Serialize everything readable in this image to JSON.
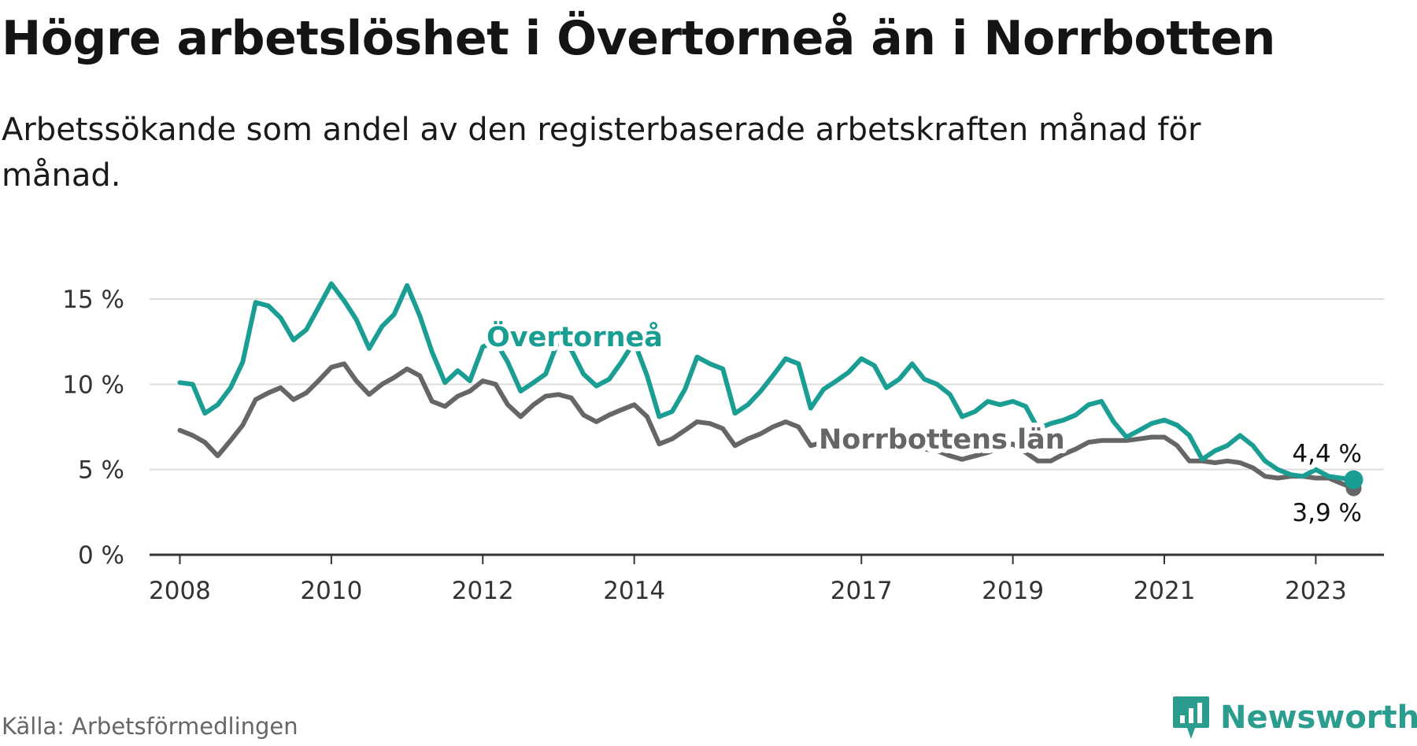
{
  "title": "Högre arbetslöshet i Övertorneå än i Norrbotten",
  "subtitle": "Arbetssökande som andel av den registerbaserade arbetskraften månad för månad.",
  "source": "Källa: Arbetsförmedlingen",
  "brand": "Newsworthy",
  "colors": {
    "overtornea": "#1a9e93",
    "norrbotten": "#666666",
    "grid": "#dddddd",
    "axis": "#333333",
    "brand": "#2a9d8f"
  },
  "chart_data": {
    "type": "line",
    "title": "Högre arbetslöshet i Övertorneå än i Norrbotten",
    "xlabel": "",
    "ylabel": "",
    "x_range": [
      2007.6,
      2023.9
    ],
    "ylim": [
      0,
      15
    ],
    "y_ticks": [
      {
        "value": 0,
        "label": "0 %"
      },
      {
        "value": 5,
        "label": "5 %"
      },
      {
        "value": 10,
        "label": "10 %"
      },
      {
        "value": 15,
        "label": "15 %"
      }
    ],
    "x_ticks": [
      {
        "value": 2008,
        "label": "2008"
      },
      {
        "value": 2010,
        "label": "2010"
      },
      {
        "value": 2012,
        "label": "2012"
      },
      {
        "value": 2014,
        "label": "2014"
      },
      {
        "value": 2017,
        "label": "2017"
      },
      {
        "value": 2019,
        "label": "2019"
      },
      {
        "value": 2021,
        "label": "2021"
      },
      {
        "value": 2023,
        "label": "2023"
      }
    ],
    "grid": true,
    "series": [
      {
        "name": "Övertorneå",
        "label": "Övertorneå",
        "end_label": "4,4 %",
        "x": [
          2008.0,
          2008.17,
          2008.33,
          2008.5,
          2008.67,
          2008.83,
          2009.0,
          2009.17,
          2009.33,
          2009.5,
          2009.67,
          2009.83,
          2010.0,
          2010.17,
          2010.33,
          2010.5,
          2010.67,
          2010.83,
          2011.0,
          2011.17,
          2011.33,
          2011.5,
          2011.67,
          2011.83,
          2012.0,
          2012.17,
          2012.33,
          2012.5,
          2012.67,
          2012.83,
          2013.0,
          2013.17,
          2013.33,
          2013.5,
          2013.67,
          2013.83,
          2014.0,
          2014.17,
          2014.33,
          2014.5,
          2014.67,
          2014.83,
          2015.0,
          2015.17,
          2015.33,
          2015.5,
          2015.67,
          2015.83,
          2016.0,
          2016.17,
          2016.33,
          2016.5,
          2016.67,
          2016.83,
          2017.0,
          2017.17,
          2017.33,
          2017.5,
          2017.67,
          2017.83,
          2018.0,
          2018.17,
          2018.33,
          2018.5,
          2018.67,
          2018.83,
          2019.0,
          2019.17,
          2019.33,
          2019.5,
          2019.67,
          2019.83,
          2020.0,
          2020.17,
          2020.33,
          2020.5,
          2020.67,
          2020.83,
          2021.0,
          2021.17,
          2021.33,
          2021.5,
          2021.67,
          2021.83,
          2022.0,
          2022.17,
          2022.33,
          2022.5,
          2022.67,
          2022.83,
          2023.0,
          2023.17,
          2023.33,
          2023.5
        ],
        "values": [
          10.1,
          10.0,
          8.3,
          8.8,
          9.8,
          11.3,
          14.8,
          14.6,
          13.9,
          12.6,
          13.2,
          14.5,
          15.9,
          14.9,
          13.8,
          12.1,
          13.4,
          14.1,
          15.8,
          14.0,
          11.9,
          10.1,
          10.8,
          10.2,
          12.2,
          12.5,
          11.3,
          9.6,
          10.1,
          10.6,
          12.6,
          12.0,
          10.6,
          9.9,
          10.3,
          11.3,
          12.5,
          10.5,
          8.1,
          8.4,
          9.7,
          11.6,
          11.2,
          10.9,
          8.3,
          8.8,
          9.6,
          10.5,
          11.5,
          11.2,
          8.6,
          9.7,
          10.2,
          10.7,
          11.5,
          11.1,
          9.8,
          10.3,
          11.2,
          10.3,
          10.0,
          9.4,
          8.1,
          8.4,
          9.0,
          8.8,
          9.0,
          8.7,
          7.4,
          7.7,
          7.9,
          8.2,
          8.8,
          9.0,
          7.8,
          6.9,
          7.3,
          7.7,
          7.9,
          7.6,
          7.0,
          5.6,
          6.1,
          6.4,
          7.0,
          6.4,
          5.5,
          5.0,
          4.7,
          4.6,
          5.0,
          4.6,
          4.5,
          4.4
        ]
      },
      {
        "name": "Norrbottens län",
        "label": "Norrbottens län",
        "end_label": "3,9 %",
        "x": [
          2008.0,
          2008.17,
          2008.33,
          2008.5,
          2008.67,
          2008.83,
          2009.0,
          2009.17,
          2009.33,
          2009.5,
          2009.67,
          2009.83,
          2010.0,
          2010.17,
          2010.33,
          2010.5,
          2010.67,
          2010.83,
          2011.0,
          2011.17,
          2011.33,
          2011.5,
          2011.67,
          2011.83,
          2012.0,
          2012.17,
          2012.33,
          2012.5,
          2012.67,
          2012.83,
          2013.0,
          2013.17,
          2013.33,
          2013.5,
          2013.67,
          2013.83,
          2014.0,
          2014.17,
          2014.33,
          2014.5,
          2014.67,
          2014.83,
          2015.0,
          2015.17,
          2015.33,
          2015.5,
          2015.67,
          2015.83,
          2016.0,
          2016.17,
          2016.33,
          2016.5,
          2016.67,
          2016.83,
          2017.0,
          2017.17,
          2017.33,
          2017.5,
          2017.67,
          2017.83,
          2018.0,
          2018.17,
          2018.33,
          2018.5,
          2018.67,
          2018.83,
          2019.0,
          2019.17,
          2019.33,
          2019.5,
          2019.67,
          2019.83,
          2020.0,
          2020.17,
          2020.33,
          2020.5,
          2020.67,
          2020.83,
          2021.0,
          2021.17,
          2021.33,
          2021.5,
          2021.67,
          2021.83,
          2022.0,
          2022.17,
          2022.33,
          2022.5,
          2022.67,
          2022.83,
          2023.0,
          2023.17,
          2023.33,
          2023.5
        ],
        "values": [
          7.3,
          7.0,
          6.6,
          5.8,
          6.7,
          7.6,
          9.1,
          9.5,
          9.8,
          9.1,
          9.5,
          10.2,
          11.0,
          11.2,
          10.2,
          9.4,
          10.0,
          10.4,
          10.9,
          10.5,
          9.0,
          8.7,
          9.3,
          9.6,
          10.2,
          10.0,
          8.8,
          8.1,
          8.8,
          9.3,
          9.4,
          9.2,
          8.2,
          7.8,
          8.2,
          8.5,
          8.8,
          8.1,
          6.5,
          6.8,
          7.3,
          7.8,
          7.7,
          7.4,
          6.4,
          6.8,
          7.1,
          7.5,
          7.8,
          7.5,
          6.4,
          6.6,
          6.9,
          7.0,
          6.9,
          6.6,
          6.3,
          6.3,
          6.4,
          6.2,
          6.1,
          5.8,
          5.6,
          5.8,
          6.0,
          6.3,
          6.5,
          6.0,
          5.5,
          5.5,
          5.9,
          6.2,
          6.6,
          6.7,
          6.7,
          6.7,
          6.8,
          6.9,
          6.9,
          6.4,
          5.5,
          5.5,
          5.4,
          5.5,
          5.4,
          5.1,
          4.6,
          4.5,
          4.6,
          4.6,
          4.5,
          4.5,
          4.2,
          3.9
        ]
      }
    ]
  }
}
